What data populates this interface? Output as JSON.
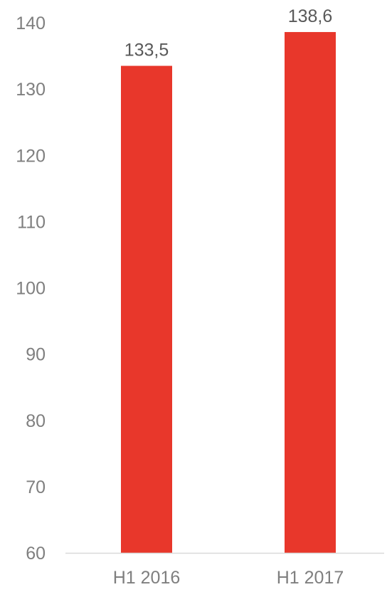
{
  "chart_data": {
    "type": "bar",
    "categories": [
      "H1 2016",
      "H1 2017"
    ],
    "values": [
      133.5,
      138.6
    ],
    "value_labels": [
      "133,5",
      "138,6"
    ],
    "yticks": [
      "60",
      "70",
      "80",
      "90",
      "100",
      "110",
      "120",
      "130",
      "140"
    ],
    "ylim": [
      60,
      140
    ],
    "grid": false,
    "legend": "none",
    "colors": {
      "bar": "#e8372b",
      "axis_line": "#d9d9d9",
      "tick_text": "#7f7f7f",
      "data_label_text": "#595959"
    }
  }
}
